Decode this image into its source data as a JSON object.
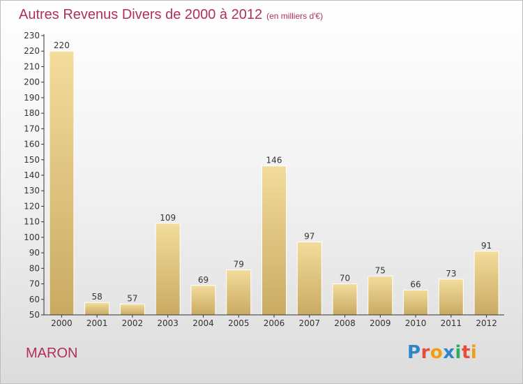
{
  "title": "Autres Revenus Divers de 2000 à 2012",
  "subtitle": "(en milliers d'€)",
  "commune": "MARON",
  "brand": {
    "text": "Proxiti",
    "letter_colors": [
      "#2d86c8",
      "#e84c3d",
      "#f39c12",
      "#2d86c8",
      "#27ae60",
      "#e84c3d",
      "#f39c12"
    ]
  },
  "colors": {
    "bar_light": "#f3dc9c",
    "bar_dark": "#c9aa62",
    "title": "#b0305a",
    "axis": "#333333"
  },
  "chart_data": {
    "type": "bar",
    "categories": [
      "2000",
      "2001",
      "2002",
      "2003",
      "2004",
      "2005",
      "2006",
      "2007",
      "2008",
      "2009",
      "2010",
      "2011",
      "2012"
    ],
    "values": [
      220,
      58,
      57,
      109,
      69,
      79,
      146,
      97,
      70,
      75,
      66,
      73,
      91
    ],
    "ylim": [
      50,
      230
    ],
    "yticks": [
      50,
      60,
      70,
      80,
      90,
      100,
      110,
      120,
      130,
      140,
      150,
      160,
      170,
      180,
      190,
      200,
      210,
      220,
      230
    ],
    "grid": false,
    "xlabel": "",
    "ylabel": ""
  }
}
